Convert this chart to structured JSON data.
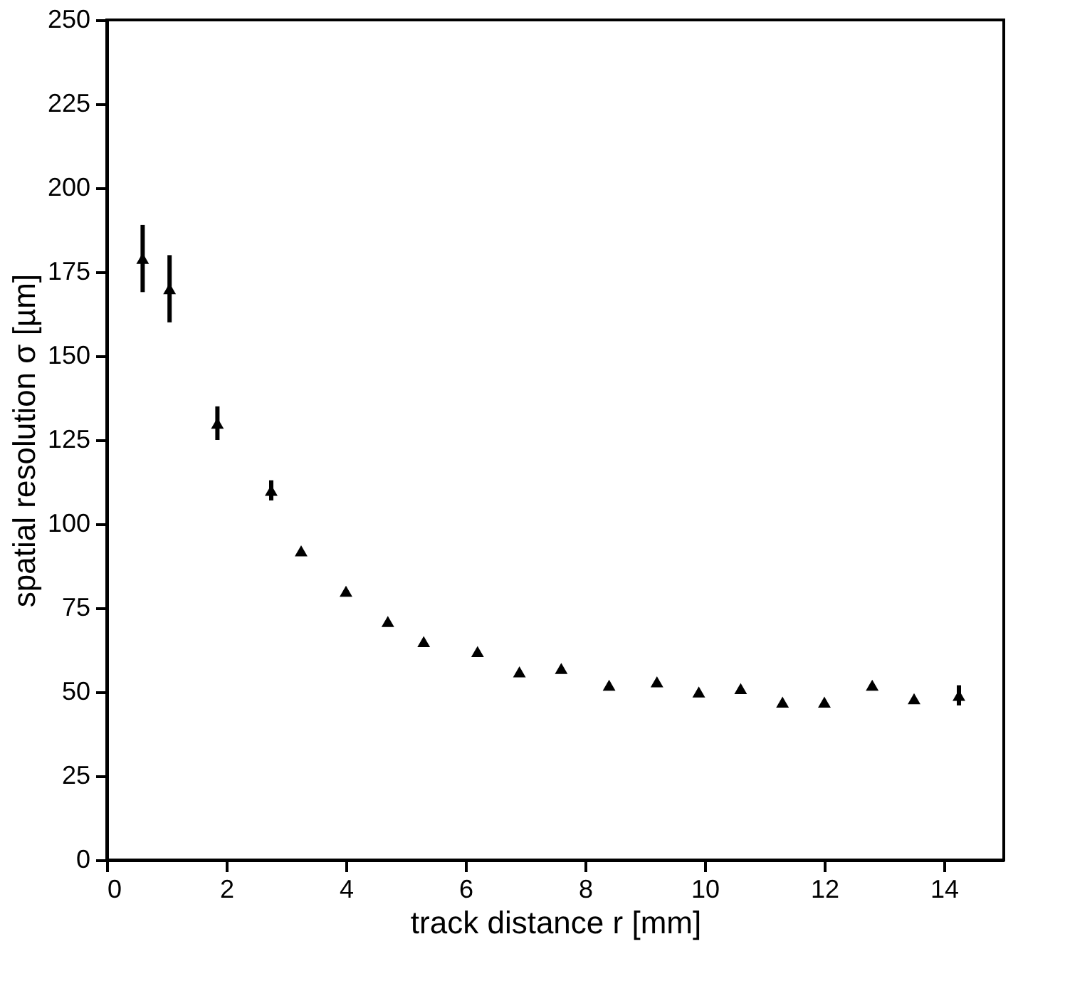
{
  "chart_data": {
    "type": "scatter",
    "xlabel": "track distance r [mm]",
    "ylabel": "spatial resolution σ [µm]",
    "x": [
      0.6,
      1.05,
      1.85,
      2.75,
      3.25,
      4.0,
      4.7,
      5.3,
      6.2,
      6.9,
      7.6,
      8.4,
      9.2,
      9.9,
      10.6,
      11.3,
      12.0,
      12.8,
      13.5,
      14.25
    ],
    "series": [
      {
        "color": "#000000",
        "values": [
          179,
          170,
          130,
          110,
          92,
          80,
          71,
          65,
          62,
          56,
          57,
          52,
          53,
          50,
          51,
          47,
          47,
          52,
          48,
          49
        ],
        "errors": [
          10,
          10,
          5,
          3,
          null,
          null,
          null,
          null,
          null,
          null,
          null,
          null,
          null,
          null,
          null,
          null,
          null,
          null,
          null,
          3
        ]
      }
    ],
    "marker": "triangle",
    "xlim": [
      0,
      15
    ],
    "ylim": [
      0,
      250
    ],
    "xticks": [
      0,
      2,
      4,
      6,
      8,
      10,
      12,
      14
    ],
    "yticks": [
      0,
      25,
      50,
      75,
      100,
      125,
      150,
      175,
      200,
      225,
      250
    ],
    "grid": false
  }
}
